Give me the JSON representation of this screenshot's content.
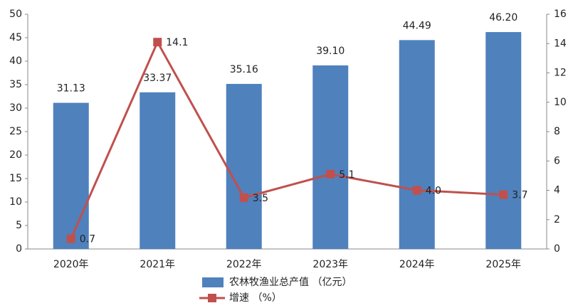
{
  "chart_data": {
    "type": "bar",
    "categories": [
      "2020年",
      "2021年",
      "2022年",
      "2023年",
      "2024年",
      "2025年"
    ],
    "series": [
      {
        "name": "农林牧渔业总产值 （亿元）",
        "type": "bar",
        "color": "#4f81bd",
        "values": [
          31.13,
          33.37,
          35.16,
          39.1,
          44.49,
          46.2
        ],
        "value_labels": [
          "31.13",
          "33.37",
          "35.16",
          "39.10",
          "44.49",
          "46.20"
        ]
      },
      {
        "name": "增速 （%）",
        "type": "line",
        "axis": "y2",
        "color": "#c0504d",
        "values": [
          0.7,
          14.1,
          3.5,
          5.1,
          4.0,
          3.7
        ],
        "value_labels": [
          "0.7",
          "14.1",
          "3.5",
          "5.1",
          "4.0",
          "3.7"
        ]
      }
    ],
    "ylim": [
      0,
      50
    ],
    "yticks": [
      0,
      5,
      10,
      15,
      20,
      25,
      30,
      35,
      40,
      45,
      50
    ],
    "y2lim": [
      0,
      16
    ],
    "y2ticks": [
      0,
      2,
      4,
      6,
      8,
      10,
      12,
      14,
      16
    ],
    "grid": false,
    "legend": "bottom"
  }
}
